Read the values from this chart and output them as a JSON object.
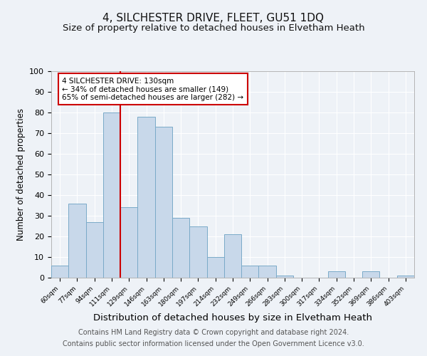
{
  "title": "4, SILCHESTER DRIVE, FLEET, GU51 1DQ",
  "subtitle": "Size of property relative to detached houses in Elvetham Heath",
  "xlabel": "Distribution of detached houses by size in Elvetham Heath",
  "ylabel": "Number of detached properties",
  "bar_labels": [
    "60sqm",
    "77sqm",
    "94sqm",
    "111sqm",
    "129sqm",
    "146sqm",
    "163sqm",
    "180sqm",
    "197sqm",
    "214sqm",
    "232sqm",
    "249sqm",
    "266sqm",
    "283sqm",
    "300sqm",
    "317sqm",
    "334sqm",
    "352sqm",
    "369sqm",
    "386sqm",
    "403sqm"
  ],
  "bar_values": [
    6,
    36,
    27,
    80,
    34,
    78,
    73,
    29,
    25,
    10,
    21,
    6,
    6,
    1,
    0,
    0,
    3,
    0,
    3,
    0,
    1
  ],
  "bar_color": "#c8d8ea",
  "bar_edge_color": "#7aaac8",
  "ylim": [
    0,
    100
  ],
  "yticks": [
    0,
    10,
    20,
    30,
    40,
    50,
    60,
    70,
    80,
    90,
    100
  ],
  "vline_x_index": 4,
  "vline_color": "#cc0000",
  "annotation_title": "4 SILCHESTER DRIVE: 130sqm",
  "annotation_line1": "← 34% of detached houses are smaller (149)",
  "annotation_line2": "65% of semi-detached houses are larger (282) →",
  "annotation_box_color": "#ffffff",
  "annotation_box_edge": "#cc0000",
  "footnote1": "Contains HM Land Registry data © Crown copyright and database right 2024.",
  "footnote2": "Contains public sector information licensed under the Open Government Licence v3.0.",
  "background_color": "#eef2f7",
  "grid_color": "#ffffff",
  "title_fontsize": 11,
  "subtitle_fontsize": 9.5,
  "xlabel_fontsize": 9.5,
  "ylabel_fontsize": 8.5,
  "footnote_fontsize": 7
}
